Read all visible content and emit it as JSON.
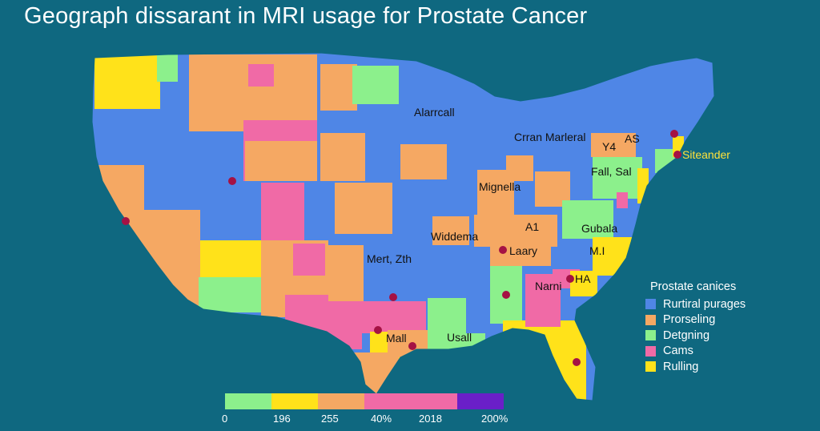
{
  "title": "Geograph dissarant in MRI usage for Prostate Cancer",
  "colors": {
    "background": "#0f6880",
    "blue": "#4f86e6",
    "orange": "#f5a863",
    "green": "#8cf08c",
    "pink": "#f06aa6",
    "yellow": "#ffe21a",
    "dot": "#a51244"
  },
  "map_labels": [
    {
      "text": "Alarrcall"
    },
    {
      "text": "Crran Marleral"
    },
    {
      "text": "Y4"
    },
    {
      "text": "AS"
    },
    {
      "text": "Siteander"
    },
    {
      "text": "Fall, Sal"
    },
    {
      "text": "Mignella"
    },
    {
      "text": "A1"
    },
    {
      "text": "Gubala"
    },
    {
      "text": "Widdema"
    },
    {
      "text": "Laary"
    },
    {
      "text": "M.I"
    },
    {
      "text": "Mert, Zth"
    },
    {
      "text": "Narni"
    },
    {
      "text": "HA"
    },
    {
      "text": "Mall"
    },
    {
      "text": "Usall"
    }
  ],
  "legend": {
    "title": "Prostate canices",
    "items": [
      {
        "label": "Rurtiral purages",
        "color": "#4f86e6"
      },
      {
        "label": "Prorseling",
        "color": "#f5a863"
      },
      {
        "label": "Detgning",
        "color": "#8cf08c"
      },
      {
        "label": "Cams",
        "color": "#f06aa6"
      },
      {
        "label": "Rulling",
        "color": "#ffe21a"
      }
    ]
  },
  "scale": {
    "colors": [
      "#8cf08c",
      "#ffe21a",
      "#f5a863",
      "#f06aa6",
      "#f06aa6",
      "#6a1fc8"
    ],
    "ticks": [
      "0",
      "196",
      "255",
      "40%",
      "2018",
      "200%"
    ]
  }
}
